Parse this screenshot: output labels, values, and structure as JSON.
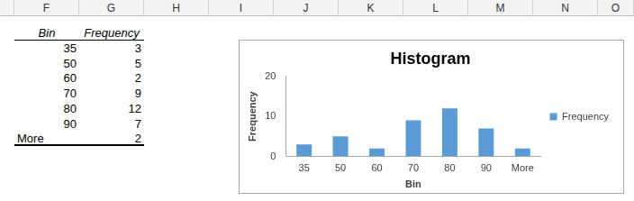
{
  "sheet": {
    "columns": [
      "F",
      "G",
      "H",
      "I",
      "J",
      "K",
      "L",
      "M",
      "N",
      "O"
    ],
    "table": {
      "header": [
        "Bin",
        "Frequency"
      ],
      "rows": [
        [
          35,
          3
        ],
        [
          50,
          5
        ],
        [
          60,
          2
        ],
        [
          70,
          9
        ],
        [
          80,
          12
        ],
        [
          90,
          7
        ],
        [
          "More",
          2
        ]
      ]
    }
  },
  "chart_data": {
    "type": "bar",
    "title": "Histogram",
    "x_label": "Bin",
    "y_label": "Frequency",
    "categories": [
      "35",
      "50",
      "60",
      "70",
      "80",
      "90",
      "More"
    ],
    "series": [
      {
        "name": "Frequency",
        "color": "#5b9bd5",
        "values": [
          3,
          5,
          2,
          9,
          12,
          7,
          2
        ]
      }
    ],
    "ylim": [
      0,
      20
    ],
    "yticks": [
      0,
      10,
      20
    ],
    "grid": false,
    "legend": "right"
  }
}
